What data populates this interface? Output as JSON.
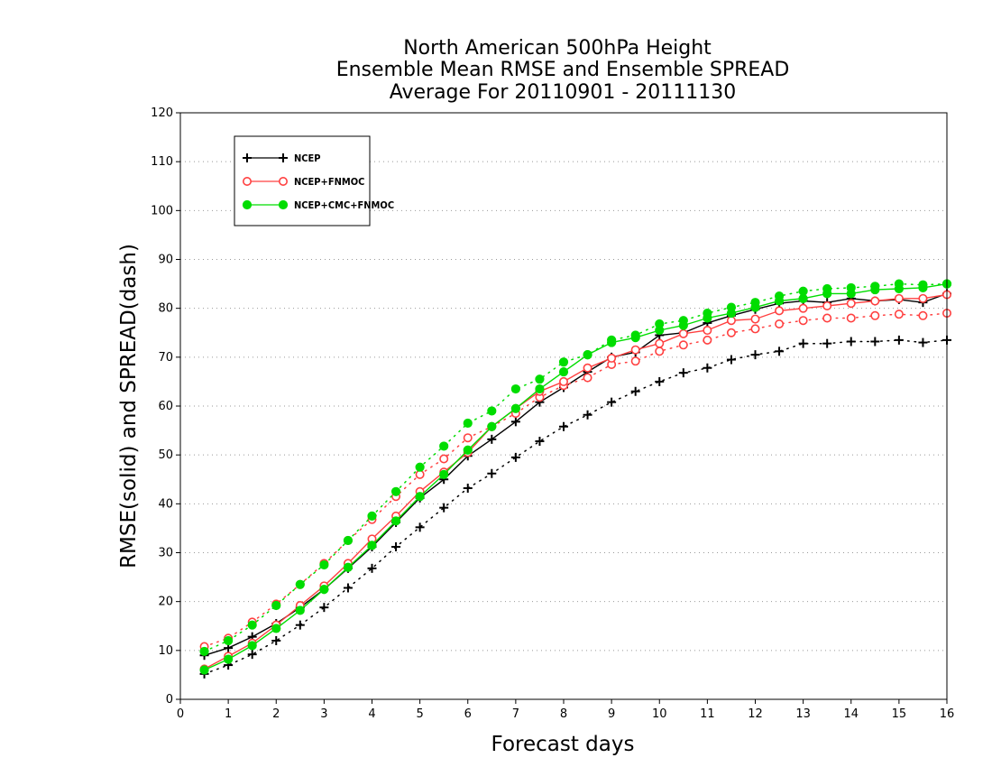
{
  "chart_data": {
    "type": "line",
    "title": [
      "North American 500hPa Height",
      "Ensemble Mean RMSE and Ensemble SPREAD",
      "Average For 20110901 - 20111130"
    ],
    "xlabel": "Forecast days",
    "ylabel": "RMSE(solid) and SPREAD(dash)",
    "xlim": [
      0,
      16
    ],
    "ylim": [
      0,
      120
    ],
    "xticks": [
      "0",
      "1",
      "2",
      "3",
      "4",
      "5",
      "6",
      "7",
      "8",
      "9",
      "10",
      "11",
      "12",
      "13",
      "14",
      "15",
      "16"
    ],
    "yticks": [
      "0",
      "10",
      "20",
      "30",
      "40",
      "50",
      "60",
      "70",
      "80",
      "90",
      "100",
      "110",
      "120"
    ],
    "grid": "horizontal dotted",
    "legend_position": "top-left",
    "x": [
      0.5,
      1,
      1.5,
      2,
      2.5,
      3,
      3.5,
      4,
      4.5,
      5,
      5.5,
      6,
      6.5,
      7,
      7.5,
      8,
      8.5,
      9,
      9.5,
      10,
      10.5,
      11,
      11.5,
      12,
      12.5,
      13,
      13.5,
      14,
      14.5,
      15,
      15.5,
      16
    ],
    "series": [
      {
        "name": "NCEP",
        "color": "#000000",
        "marker": "plus",
        "rmse": [
          9,
          10.5,
          12.8,
          15.5,
          18.8,
          22.5,
          26.8,
          31.2,
          36.2,
          41.2,
          45,
          49.8,
          53.2,
          56.8,
          60.8,
          63.8,
          67,
          70,
          71,
          74.5,
          75,
          77,
          78.5,
          79.8,
          81,
          81.5,
          81.2,
          82,
          81.5,
          81.8,
          81.2,
          83
        ],
        "spread": [
          5.2,
          7,
          9.2,
          12,
          15.2,
          18.8,
          22.8,
          26.8,
          31.2,
          35.2,
          39.2,
          43.2,
          46.2,
          49.5,
          52.8,
          55.8,
          58.2,
          60.8,
          63,
          65,
          66.8,
          67.8,
          69.5,
          70.5,
          71.2,
          72.8,
          72.8,
          73.2,
          73.2,
          73.5,
          73,
          73.5
        ]
      },
      {
        "name": "NCEP+FNMOC",
        "color": "#ff4040",
        "marker": "circle",
        "rmse": [
          6.2,
          8.8,
          11.5,
          15.2,
          19.2,
          23.2,
          27.8,
          32.8,
          37.5,
          42.5,
          46.5,
          50.5,
          55.8,
          59.5,
          63,
          65,
          67.8,
          69.8,
          71.5,
          72.8,
          74.8,
          75.5,
          77.5,
          77.8,
          79.5,
          80,
          80.5,
          81,
          81.5,
          82,
          82,
          82.8
        ],
        "spread": [
          10.8,
          12.5,
          15.8,
          19.5,
          23.5,
          27.8,
          32.5,
          36.8,
          41.5,
          46,
          49.2,
          53.5,
          55.8,
          58.5,
          61.8,
          64.2,
          65.8,
          68.5,
          69.2,
          71.2,
          72.5,
          73.5,
          75,
          75.8,
          76.8,
          77.5,
          78,
          78,
          78.5,
          78.8,
          78.5,
          79
        ]
      },
      {
        "name": "NCEP+CMC+FNMOC",
        "color": "#00dd00",
        "marker": "filled-circle",
        "rmse": [
          6,
          8.2,
          11,
          14.5,
          18.2,
          22.5,
          27,
          31.5,
          36.5,
          41.5,
          46,
          51,
          55.8,
          59.5,
          63.5,
          67,
          70.5,
          73,
          74,
          75.5,
          76.5,
          78,
          79,
          80.2,
          81.5,
          82,
          83,
          83,
          83.8,
          84,
          84.2,
          85
        ],
        "spread": [
          9.8,
          12,
          15.2,
          19.2,
          23.5,
          27.5,
          32.5,
          37.5,
          42.5,
          47.5,
          51.8,
          56.5,
          59,
          63.5,
          65.5,
          69,
          70.5,
          73.5,
          74.5,
          76.8,
          77.5,
          79,
          80.2,
          81.2,
          82.5,
          83.5,
          84,
          84.2,
          84.5,
          85,
          84.8,
          85
        ]
      }
    ]
  }
}
